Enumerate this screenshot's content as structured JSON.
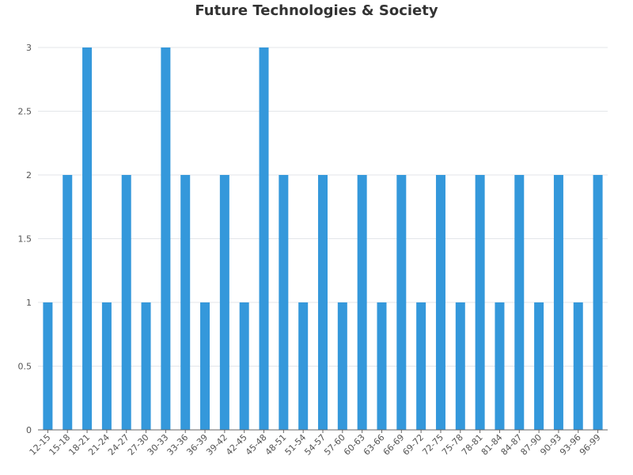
{
  "chart_data": {
    "type": "bar",
    "title": "Future Technologies & Society",
    "xlabel": "",
    "ylabel": "",
    "ylim": [
      0,
      3
    ],
    "yticks": [
      "0",
      "0.5",
      "1",
      "1.5",
      "2",
      "2.5",
      "3"
    ],
    "grid": true,
    "legend": "none",
    "bar_color": "#3498db",
    "categories": [
      "12-15",
      "15-18",
      "18-21",
      "21-24",
      "24-27",
      "27-30",
      "30-33",
      "33-36",
      "36-39",
      "39-42",
      "42-45",
      "45-48",
      "48-51",
      "51-54",
      "54-57",
      "57-60",
      "60-63",
      "63-66",
      "66-69",
      "69-72",
      "72-75",
      "75-78",
      "78-81",
      "81-84",
      "84-87",
      "87-90",
      "90-93",
      "93-96",
      "96-99"
    ],
    "values": [
      1,
      2,
      3,
      1,
      2,
      1,
      3,
      2,
      1,
      2,
      1,
      3,
      2,
      1,
      2,
      1,
      2,
      1,
      2,
      1,
      2,
      1,
      2,
      1,
      2,
      1,
      2,
      1,
      2
    ]
  }
}
